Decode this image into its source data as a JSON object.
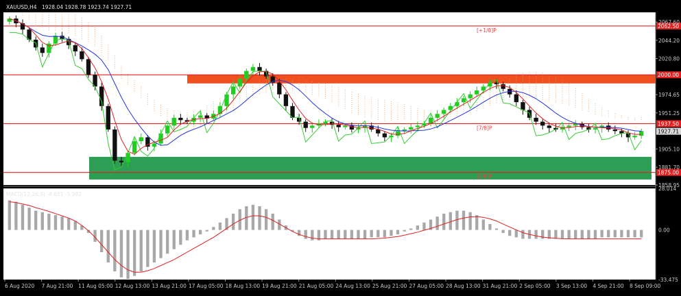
{
  "window": {
    "frame_color": "#2e2e2e"
  },
  "header": {
    "symbol": "XAUUSD,H4",
    "ohlc": "1928.04 1928.78 1923.74 1927.71"
  },
  "macd_header": "MACD(12,26,9) -4.651 -5.982",
  "colors": {
    "background": "#ffffff",
    "bull_candle": "#22cc22",
    "bear_candle": "#111111",
    "fast_ma": "#e02020",
    "slow_ma": "#2233dd",
    "green_line": "#33cc33",
    "cloud": "#e89a60",
    "resistance_zone": "#f05020",
    "support_zone": "#2e9e55",
    "level_line": "#e02020",
    "macd_hist": "#a8a8a8",
    "macd_signal": "#e02020"
  },
  "chart_data": [
    {
      "type": "candlestick",
      "title": "XAUUSD,H4",
      "ylim": [
        1858.95,
        2080
      ],
      "y_ticks": [
        "2067.60",
        "2044.20",
        "2020.80",
        "1974.65",
        "1951.25",
        "1905.10",
        "1881.70",
        "1858.95"
      ],
      "x_ticks": [
        "6 Aug 2020",
        "7 Aug 21:00",
        "11 Aug 05:00",
        "12 Aug 13:00",
        "13 Aug 21:00",
        "17 Aug 05:00",
        "18 Aug 13:00",
        "19 Aug 21:00",
        "21 Aug 05:00",
        "24 Aug 13:00",
        "25 Aug 21:00",
        "27 Aug 05:00",
        "28 Aug 13:00",
        "31 Aug 21:00",
        "2 Sep 05:00",
        "3 Sep 13:00",
        "4 Sep 21:00",
        "8 Sep 09:00"
      ],
      "current_price": "1927.71",
      "levels": [
        {
          "price": 2062.5,
          "label": "2062.50",
          "text": "[+1/8]P"
        },
        {
          "price": 2000.0,
          "label": "2000.00",
          "text": ""
        },
        {
          "price": 1937.5,
          "label": "1937.50",
          "text": "[7/8]P"
        },
        {
          "price": 1875.0,
          "label": "1875.00",
          "text": "[8/8]P"
        }
      ],
      "zones": [
        {
          "name": "resistance",
          "from": 1989,
          "to": 2000
        },
        {
          "name": "support",
          "from": 1866,
          "to": 1895
        }
      ],
      "close_series": [
        2072,
        2066,
        2058,
        2045,
        2035,
        2028,
        2040,
        2050,
        2046,
        2038,
        2030,
        2020,
        2000,
        1985,
        1960,
        1930,
        1890,
        1888,
        1900,
        1915,
        1920,
        1908,
        1912,
        1925,
        1935,
        1945,
        1942,
        1940,
        1945,
        1948,
        1944,
        1950,
        1960,
        1975,
        1985,
        1995,
        2005,
        2010,
        2005,
        1998,
        1990,
        1975,
        1960,
        1945,
        1940,
        1932,
        1935,
        1938,
        1940,
        1936,
        1933,
        1935,
        1930,
        1932,
        1935,
        1930,
        1925,
        1920,
        1922,
        1928,
        1930,
        1933,
        1935,
        1938,
        1945,
        1950,
        1955,
        1960,
        1965,
        1970,
        1975,
        1980,
        1985,
        1990,
        1988,
        1982,
        1975,
        1965,
        1955,
        1945,
        1940,
        1935,
        1932,
        1930,
        1933,
        1935,
        1937,
        1933,
        1930,
        1932,
        1935,
        1930,
        1928,
        1925,
        1920,
        1922,
        1928
      ]
    },
    {
      "type": "macd",
      "title": "MACD(12,26,9)",
      "ylim": [
        -33.475,
        28.014
      ],
      "y_ticks": [
        "28.014",
        "0.00",
        "-33.475"
      ],
      "histogram": [
        20,
        19,
        17,
        15,
        13,
        12,
        11,
        10,
        9,
        8,
        6,
        3,
        -2,
        -8,
        -15,
        -22,
        -28,
        -32,
        -33,
        -31,
        -28,
        -25,
        -22,
        -19,
        -16,
        -13,
        -10,
        -7,
        -5,
        -3,
        -1,
        2,
        5,
        8,
        11,
        14,
        16,
        17,
        16,
        14,
        11,
        7,
        3,
        -1,
        -4,
        -6,
        -7,
        -7,
        -6,
        -6,
        -6,
        -6,
        -6,
        -6,
        -6,
        -5,
        -5,
        -5,
        -4,
        -3,
        -1,
        1,
        3,
        5,
        7,
        9,
        11,
        12,
        13,
        13,
        12,
        10,
        7,
        4,
        1,
        -2,
        -4,
        -5,
        -6,
        -6,
        -6,
        -6,
        -6,
        -6,
        -6,
        -6,
        -6,
        -6,
        -6,
        -6,
        -5,
        -5,
        -5,
        -5,
        -5,
        -5,
        -5
      ],
      "signal": [
        19,
        18.5,
        17.5,
        16.5,
        15,
        13.8,
        12.5,
        11,
        9.5,
        8,
        6,
        3,
        -0.5,
        -5,
        -10,
        -15,
        -20,
        -24,
        -27,
        -28.5,
        -28.5,
        -27.5,
        -26,
        -24,
        -22,
        -20,
        -17.5,
        -15,
        -12.5,
        -10,
        -7.5,
        -5,
        -2,
        1,
        4,
        6.5,
        8.5,
        9.5,
        9.5,
        8.5,
        6.5,
        4,
        1.5,
        -1,
        -3,
        -4.5,
        -5.5,
        -6,
        -6,
        -6,
        -6,
        -6,
        -6,
        -6,
        -6,
        -6,
        -5.8,
        -5.5,
        -5,
        -4.5,
        -3.5,
        -2.5,
        -1.5,
        -0.2,
        1,
        2.5,
        4,
        5.5,
        7,
        8,
        8.8,
        9,
        8.5,
        7.5,
        6,
        4,
        2,
        0,
        -1.8,
        -3,
        -4,
        -4.8,
        -5.3,
        -5.6,
        -5.9,
        -6,
        -6,
        -6,
        -6,
        -6,
        -6,
        -6,
        -6,
        -6,
        -6,
        -6,
        -6
      ]
    }
  ]
}
